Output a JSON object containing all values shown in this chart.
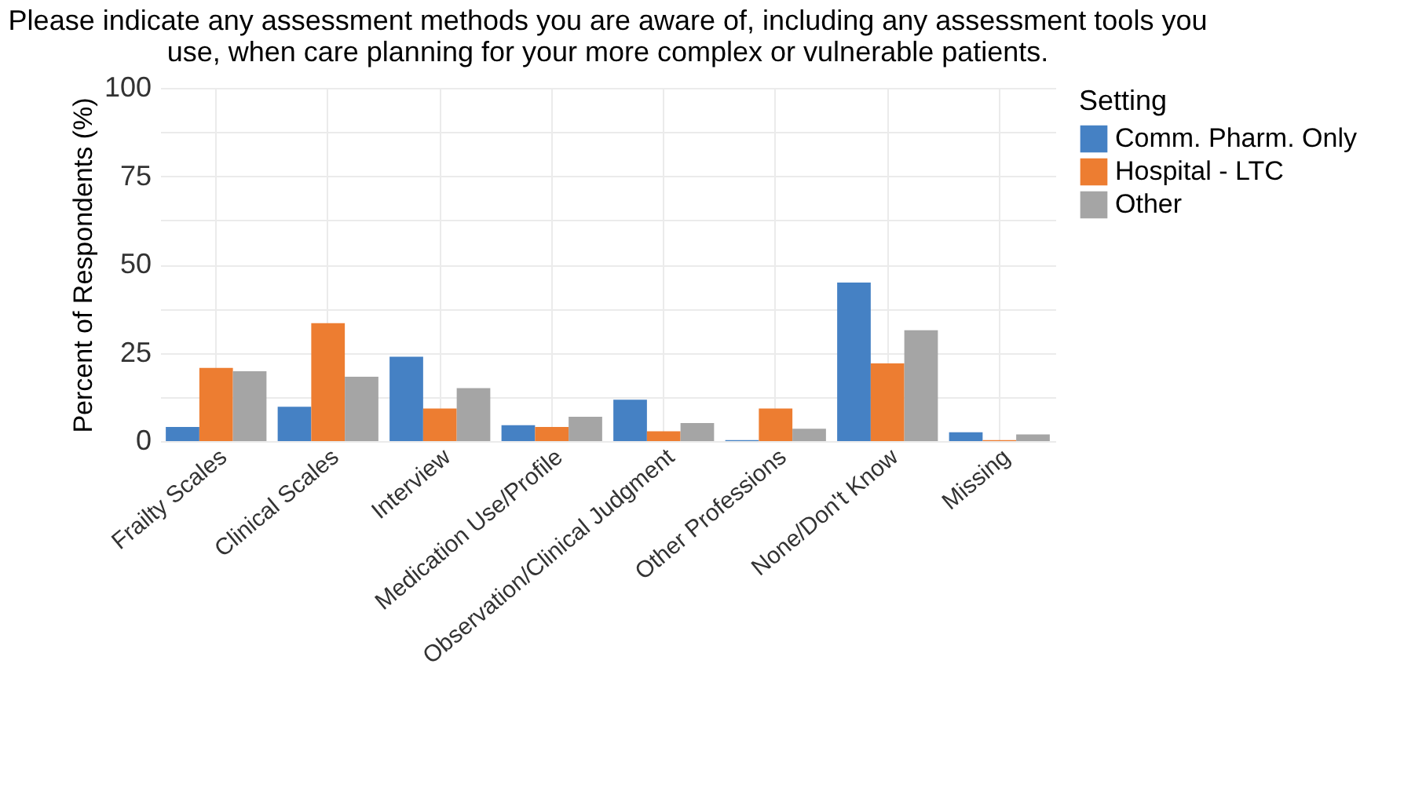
{
  "chart_data": {
    "type": "bar",
    "title": [
      "Please indicate any assessment methods you are aware of, including any assessment tools you",
      "use, when care planning for your more complex or vulnerable patients."
    ],
    "categories": [
      "Frailty Scales",
      "Clinical Scales",
      "Interview",
      "Medication Use/Profile",
      "Observation/Clinical Judgment",
      "Other Professions",
      "None/Don't Know",
      "Missing"
    ],
    "series": [
      {
        "name": "Comm. Pharm. Only",
        "color": "#4581c4",
        "values": [
          4.0,
          9.7,
          23.9,
          4.5,
          11.7,
          0.3,
          44.9,
          2.5
        ]
      },
      {
        "name": "Hospital - LTC",
        "color": "#ed7d31",
        "values": [
          20.7,
          33.4,
          9.2,
          4.0,
          2.8,
          9.2,
          22.0,
          0.3
        ]
      },
      {
        "name": "Other",
        "color": "#a5a5a5",
        "values": [
          19.8,
          18.2,
          15.0,
          6.9,
          5.1,
          3.5,
          31.4,
          1.9
        ]
      }
    ],
    "ylabel": "Percent of Respondents (%)",
    "legend_title": "Setting",
    "legend": "right",
    "ylim": [
      0,
      100
    ],
    "yticks": [
      0,
      {
        "value": 12.5,
        "label": null
      },
      25,
      {
        "value": 37.5,
        "label": null
      },
      50,
      {
        "value": 62.5,
        "label": null
      },
      75,
      {
        "value": 87.5,
        "label": null
      },
      100
    ],
    "grid": true
  }
}
